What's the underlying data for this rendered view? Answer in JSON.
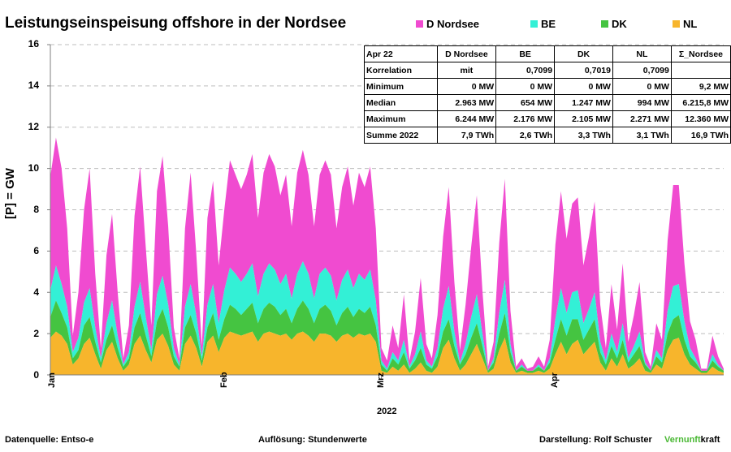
{
  "title": "Leistungseinspeisung offshore in der Nordsee",
  "legend": [
    {
      "label": "D Nordsee",
      "color": "#f04bd0"
    },
    {
      "label": "BE",
      "color": "#33f0d6"
    },
    {
      "label": "DK",
      "color": "#45c441"
    },
    {
      "label": "NL",
      "color": "#f7b52c"
    }
  ],
  "y_axis_label": "[P] = GW",
  "x_axis_label": "2022",
  "footer": {
    "source": "Datenquelle: Entso-e",
    "resolution": "Auflösung: Stundenwerte",
    "credit": "Darstellung: Rolf Schuster",
    "brand_green": "Vernunft",
    "brand_black": "kraft"
  },
  "stats_table": {
    "header": [
      "Apr 22",
      "D Nordsee",
      "BE",
      "DK",
      "NL",
      "Σ_Nordsee"
    ],
    "rows": [
      [
        "Korrelation",
        "mit",
        "0,7099",
        "0,7019",
        "0,7099",
        ""
      ],
      [
        "Minimum",
        "0 MW",
        "0 MW",
        "0 MW",
        "0 MW",
        "9,2 MW"
      ],
      [
        "Median",
        "2.963 MW",
        "654 MW",
        "1.247 MW",
        "994 MW",
        "6.215,8 MW"
      ],
      [
        "Maximum",
        "6.244 MW",
        "2.176 MW",
        "2.105 MW",
        "2.271 MW",
        "12.360 MW"
      ],
      [
        "Summe 2022",
        "7,9 TWh",
        "2,6 TWh",
        "3,3 TWh",
        "3,1 TWh",
        "16,9 TWh"
      ]
    ]
  },
  "chart_data": {
    "type": "area",
    "stacked": true,
    "title": "Leistungseinspeisung offshore in der Nordsee",
    "xlabel": "2022",
    "ylabel": "[P] = GW",
    "ylim": [
      0,
      16
    ],
    "yticks": [
      0,
      2,
      4,
      6,
      8,
      10,
      12,
      14,
      16
    ],
    "x_range_days": [
      0,
      120
    ],
    "month_ticks": [
      {
        "label": "Jan",
        "day": 0
      },
      {
        "label": "Feb",
        "day": 31
      },
      {
        "label": "Mrz",
        "day": 59
      },
      {
        "label": "Apr",
        "day": 90
      }
    ],
    "grid": "horizontal dashed",
    "legend_position": "top",
    "x_days": [
      0,
      1,
      2,
      3,
      4,
      5,
      6,
      7,
      8,
      9,
      10,
      11,
      12,
      13,
      14,
      15,
      16,
      17,
      18,
      19,
      20,
      21,
      22,
      23,
      24,
      25,
      26,
      27,
      28,
      29,
      30,
      31,
      32,
      33,
      34,
      35,
      36,
      37,
      38,
      39,
      40,
      41,
      42,
      43,
      44,
      45,
      46,
      47,
      48,
      49,
      50,
      51,
      52,
      53,
      54,
      55,
      56,
      57,
      58,
      59,
      60,
      61,
      62,
      63,
      64,
      65,
      66,
      67,
      68,
      69,
      70,
      71,
      72,
      73,
      74,
      75,
      76,
      77,
      78,
      79,
      80,
      81,
      82,
      83,
      84,
      85,
      86,
      87,
      88,
      89,
      90,
      91,
      92,
      93,
      94,
      95,
      96,
      97,
      98,
      99,
      100,
      101,
      102,
      103,
      104,
      105,
      106,
      107,
      108,
      109,
      110,
      111,
      112,
      113,
      114,
      115,
      116,
      117,
      118,
      119,
      120
    ],
    "series": [
      {
        "name": "NL",
        "color": "#f7b52c",
        "values": [
          1.8,
          2.1,
          1.9,
          1.5,
          0.5,
          0.8,
          1.5,
          1.8,
          1.0,
          0.3,
          1.2,
          1.6,
          0.8,
          0.2,
          0.5,
          1.5,
          1.9,
          1.2,
          0.6,
          1.7,
          2.0,
          1.4,
          0.5,
          0.2,
          1.5,
          1.9,
          1.3,
          0.4,
          1.6,
          1.9,
          1.1,
          1.8,
          2.1,
          2.0,
          1.9,
          2.0,
          2.1,
          1.6,
          2.0,
          2.1,
          2.0,
          1.9,
          2.0,
          1.7,
          2.0,
          2.1,
          1.9,
          1.6,
          2.0,
          2.0,
          1.9,
          1.6,
          1.9,
          2.0,
          1.8,
          2.0,
          1.9,
          2.0,
          1.6,
          0.2,
          0.1,
          0.4,
          0.2,
          0.5,
          0.1,
          0.3,
          0.6,
          0.2,
          0.1,
          0.4,
          1.3,
          1.7,
          0.8,
          0.2,
          0.5,
          1.0,
          1.5,
          0.8,
          0.1,
          0.3,
          1.2,
          1.8,
          0.6,
          0.1,
          0.2,
          0.1,
          0.1,
          0.2,
          0.1,
          0.3,
          1.0,
          1.6,
          1.0,
          1.5,
          1.7,
          1.0,
          1.3,
          1.6,
          0.6,
          0.2,
          0.8,
          0.4,
          1.0,
          0.3,
          0.5,
          0.8,
          0.2,
          0.1,
          0.5,
          0.3,
          1.2,
          1.7,
          1.8,
          1.0,
          0.5,
          0.3,
          0.1,
          0.1,
          0.4,
          0.2,
          0.1
        ]
      },
      {
        "name": "DK",
        "color": "#45c441",
        "values": [
          1.0,
          1.5,
          1.1,
          0.8,
          0.3,
          0.4,
          0.9,
          1.0,
          0.6,
          0.3,
          0.5,
          0.8,
          0.5,
          0.2,
          0.3,
          0.8,
          1.1,
          0.7,
          0.3,
          0.9,
          1.2,
          0.9,
          0.4,
          0.2,
          0.8,
          1.0,
          0.7,
          0.3,
          0.7,
          1.1,
          0.6,
          0.9,
          1.3,
          1.2,
          1.0,
          1.2,
          1.4,
          0.9,
          1.2,
          1.4,
          1.3,
          1.0,
          1.2,
          0.8,
          1.2,
          1.5,
          1.3,
          0.9,
          1.2,
          1.4,
          1.2,
          0.8,
          1.1,
          1.3,
          1.0,
          1.2,
          1.1,
          1.3,
          0.8,
          0.3,
          0.1,
          0.4,
          0.3,
          0.6,
          0.2,
          0.4,
          0.7,
          0.3,
          0.2,
          0.5,
          0.8,
          1.0,
          0.6,
          0.3,
          0.5,
          0.8,
          1.0,
          0.6,
          0.1,
          0.3,
          0.8,
          1.2,
          0.5,
          0.1,
          0.2,
          0.1,
          0.1,
          0.2,
          0.1,
          0.3,
          0.7,
          1.1,
          0.9,
          1.2,
          1.0,
          0.7,
          0.9,
          1.1,
          0.5,
          0.3,
          0.6,
          0.4,
          0.7,
          0.3,
          0.5,
          0.6,
          0.3,
          0.1,
          0.4,
          0.3,
          0.8,
          1.0,
          1.1,
          0.7,
          0.4,
          0.3,
          0.1,
          0.1,
          0.3,
          0.2,
          0.1
        ]
      },
      {
        "name": "BE",
        "color": "#33f0d6",
        "values": [
          1.3,
          1.7,
          1.4,
          1.0,
          0.3,
          0.6,
          1.1,
          1.4,
          0.7,
          0.2,
          0.8,
          1.2,
          0.6,
          0.1,
          0.3,
          1.0,
          1.5,
          0.9,
          0.3,
          1.3,
          1.6,
          1.1,
          0.4,
          0.1,
          1.0,
          1.5,
          0.9,
          0.2,
          1.1,
          1.4,
          0.8,
          1.4,
          1.8,
          1.7,
          1.6,
          1.7,
          1.9,
          1.3,
          1.7,
          1.9,
          1.8,
          1.5,
          1.7,
          1.2,
          1.7,
          1.9,
          1.7,
          1.2,
          1.7,
          1.8,
          1.7,
          1.2,
          1.6,
          1.8,
          1.4,
          1.7,
          1.6,
          1.8,
          1.2,
          0.2,
          0.1,
          0.3,
          0.2,
          0.6,
          0.1,
          0.3,
          0.8,
          0.2,
          0.1,
          0.4,
          1.1,
          1.6,
          0.7,
          0.1,
          0.5,
          1.0,
          1.4,
          0.6,
          0.0,
          0.2,
          1.0,
          1.6,
          0.4,
          0.0,
          0.1,
          0.0,
          0.0,
          0.1,
          0.0,
          0.2,
          1.0,
          1.5,
          1.1,
          1.3,
          1.4,
          0.8,
          1.0,
          1.3,
          0.5,
          0.2,
          0.6,
          0.3,
          0.8,
          0.2,
          0.4,
          0.7,
          0.1,
          0.0,
          0.3,
          0.2,
          1.1,
          1.6,
          1.5,
          0.9,
          0.4,
          0.2,
          0.0,
          0.0,
          0.3,
          0.1,
          0.0
        ]
      },
      {
        "name": "D Nordsee",
        "color": "#f04bd0",
        "values": [
          5.5,
          6.2,
          5.6,
          3.8,
          0.8,
          2.2,
          4.5,
          5.8,
          2.6,
          0.5,
          3.3,
          4.2,
          2.1,
          0.3,
          1.3,
          4.4,
          5.6,
          3.4,
          1.2,
          5.0,
          5.8,
          3.8,
          1.0,
          0.3,
          3.8,
          5.4,
          3.0,
          0.5,
          4.2,
          5.0,
          2.8,
          3.9,
          5.2,
          4.8,
          4.5,
          4.8,
          5.3,
          3.8,
          4.9,
          5.3,
          5.0,
          4.3,
          4.8,
          3.5,
          4.9,
          5.4,
          4.8,
          3.5,
          4.8,
          5.2,
          4.9,
          3.5,
          4.5,
          5.0,
          4.0,
          4.9,
          4.5,
          5.0,
          3.5,
          0.6,
          0.4,
          1.3,
          0.6,
          2.2,
          0.3,
          1.1,
          2.6,
          0.8,
          0.4,
          1.6,
          3.5,
          4.8,
          2.4,
          0.6,
          1.9,
          3.4,
          4.8,
          2.1,
          0.2,
          0.8,
          3.4,
          4.9,
          1.6,
          0.2,
          0.3,
          0.1,
          0.2,
          0.4,
          0.2,
          0.9,
          3.6,
          4.7,
          3.6,
          4.3,
          4.5,
          2.8,
          3.5,
          4.4,
          1.8,
          0.6,
          2.4,
          1.1,
          2.9,
          0.8,
          1.5,
          2.4,
          0.5,
          0.2,
          1.3,
          0.9,
          3.4,
          4.9,
          4.8,
          2.8,
          1.3,
          0.9,
          0.1,
          0.1,
          0.9,
          0.4,
          0.1
        ]
      }
    ]
  }
}
